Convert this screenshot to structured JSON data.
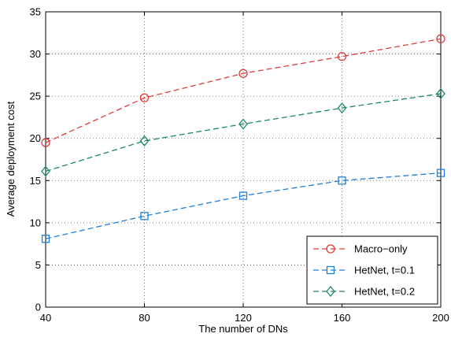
{
  "chart_data": {
    "type": "line",
    "title": "",
    "xlabel": "The number of DNs",
    "ylabel": "Average deployment cost",
    "x": [
      40,
      80,
      120,
      160,
      200
    ],
    "xlim": [
      40,
      200
    ],
    "ylim": [
      0,
      35
    ],
    "xticks": [
      40,
      80,
      120,
      160,
      200
    ],
    "yticks": [
      0,
      5,
      10,
      15,
      20,
      25,
      30,
      35
    ],
    "grid": true,
    "legend_position": "bottom-right",
    "series": [
      {
        "name": "Macro−only",
        "values": [
          19.5,
          24.8,
          27.7,
          29.7,
          31.8
        ],
        "color": "#e03c3c",
        "marker": "circle"
      },
      {
        "name": "HetNet, t=0.1",
        "values": [
          8.1,
          10.8,
          13.2,
          15.0,
          15.9
        ],
        "color": "#1f7fd6",
        "marker": "square"
      },
      {
        "name": "HetNet, t=0.2",
        "values": [
          16.1,
          19.7,
          21.7,
          23.6,
          25.3
        ],
        "color": "#1a8a5e",
        "marker": "diamond"
      }
    ]
  }
}
